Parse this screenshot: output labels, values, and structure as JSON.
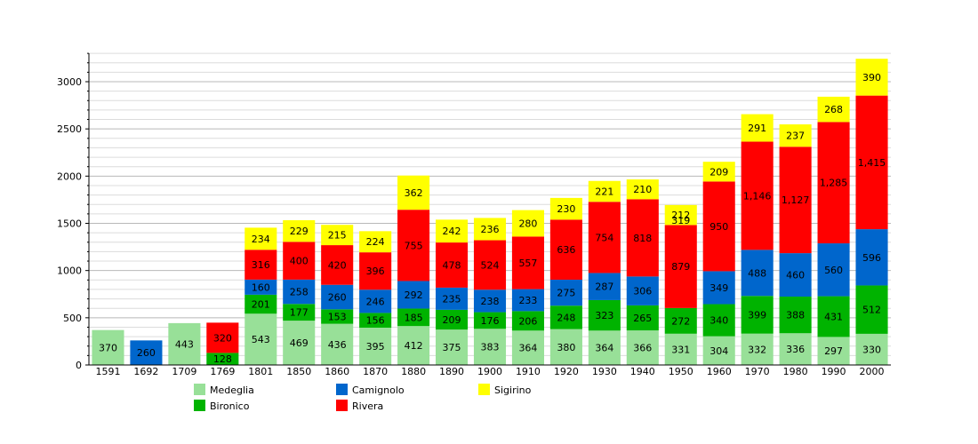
{
  "chart_data": {
    "type": "bar",
    "stacked": true,
    "title": "",
    "xlabel": "",
    "ylabel": "",
    "ylim": [
      0,
      3300
    ],
    "yticks": [
      0,
      500,
      1000,
      1500,
      2000,
      2500,
      3000
    ],
    "grid": true,
    "legend_placement": "bottom",
    "categories": [
      "1591",
      "1692",
      "1709",
      "1769",
      "1801",
      "1850",
      "1860",
      "1870",
      "1880",
      "1890",
      "1900",
      "1910",
      "1920",
      "1930",
      "1940",
      "1950",
      "1960",
      "1970",
      "1980",
      "1990",
      "2000"
    ],
    "series": [
      {
        "name": "Medeglia",
        "color": "#98e098",
        "values": [
          370,
          null,
          443,
          null,
          543,
          469,
          436,
          395,
          412,
          375,
          383,
          364,
          380,
          364,
          366,
          331,
          304,
          332,
          336,
          297,
          330
        ]
      },
      {
        "name": "Bironico",
        "color": "#00b300",
        "values": [
          null,
          null,
          null,
          128,
          201,
          177,
          153,
          156,
          185,
          209,
          176,
          206,
          248,
          323,
          265,
          272,
          340,
          399,
          388,
          431,
          512
        ]
      },
      {
        "name": "Camignolo",
        "color": "#0066cc",
        "values": [
          null,
          260,
          null,
          null,
          160,
          258,
          260,
          246,
          292,
          235,
          238,
          233,
          275,
          287,
          306,
          null,
          349,
          488,
          460,
          560,
          596
        ]
      },
      {
        "name": "Rivera",
        "color": "#ff0000",
        "values": [
          null,
          null,
          null,
          320,
          316,
          400,
          420,
          396,
          755,
          478,
          524,
          557,
          636,
          754,
          818,
          879,
          950,
          1146,
          1127,
          1285,
          1415
        ]
      },
      {
        "name": "Sigirino",
        "color": "#ffff00",
        "values": [
          null,
          null,
          null,
          null,
          234,
          229,
          215,
          224,
          362,
          242,
          236,
          280,
          230,
          221,
          210,
          212,
          209,
          291,
          237,
          268,
          390
        ]
      }
    ],
    "value_labels": {
      "Medeglia": [
        "370",
        null,
        "443",
        null,
        "543",
        "469",
        "436",
        "395",
        "412",
        "375",
        "383",
        "364",
        "380",
        "364",
        "366",
        "331",
        "304",
        "332",
        "336",
        "297",
        "330"
      ],
      "Bironico": [
        null,
        null,
        null,
        "128",
        "201",
        "177",
        "153",
        "156",
        "185",
        "209",
        "176",
        "206",
        "248",
        "323",
        "265",
        "272",
        "340",
        "399",
        "388",
        "431",
        "512"
      ],
      "Camignolo": [
        null,
        "260",
        null,
        null,
        "160",
        "258",
        "260",
        "246",
        "292",
        "235",
        "238",
        "233",
        "275",
        "287",
        "306",
        null,
        "349",
        "488",
        "460",
        "560",
        "596"
      ],
      "Rivera": [
        null,
        null,
        null,
        "320",
        "316",
        "400",
        "420",
        "396",
        "755",
        "478",
        "524",
        "557",
        "636",
        "754",
        "818",
        "879",
        "950",
        "1,146",
        "1,127",
        "1,285",
        "1,415"
      ],
      "Sigirino": [
        null,
        null,
        null,
        null,
        "234",
        "229",
        "215",
        "224",
        "362",
        "242",
        "236",
        "280",
        "230",
        "221",
        "210",
        "212",
        "209",
        "291",
        "237",
        "268",
        "390"
      ]
    },
    "extra_labels": [
      {
        "category": "1950",
        "text": "319"
      }
    ]
  }
}
